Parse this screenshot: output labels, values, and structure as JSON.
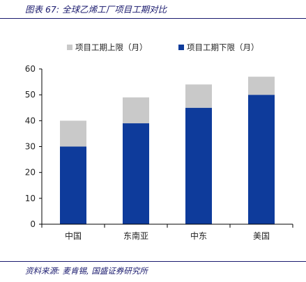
{
  "figure_title": "图表 67:  全球乙烯工厂项目工期对比",
  "source_note": "资料来源:  麦肯锡,  国盛证券研究所",
  "chart_data": {
    "type": "bar",
    "stacked": true,
    "categories": [
      "中国",
      "东南亚",
      "中东",
      "美国"
    ],
    "series": [
      {
        "name": "项目工期下限（月）",
        "color": "#0e3b9b",
        "values": [
          30,
          39,
          45,
          50
        ]
      },
      {
        "name": "项目工期上限（月）",
        "color": "#c9c9c9",
        "values": [
          10,
          10,
          9,
          7
        ]
      }
    ],
    "ylim": [
      0,
      60
    ],
    "yticks": [
      0,
      10,
      20,
      30,
      40,
      50,
      60
    ],
    "legend_position": "top",
    "grid": false
  }
}
